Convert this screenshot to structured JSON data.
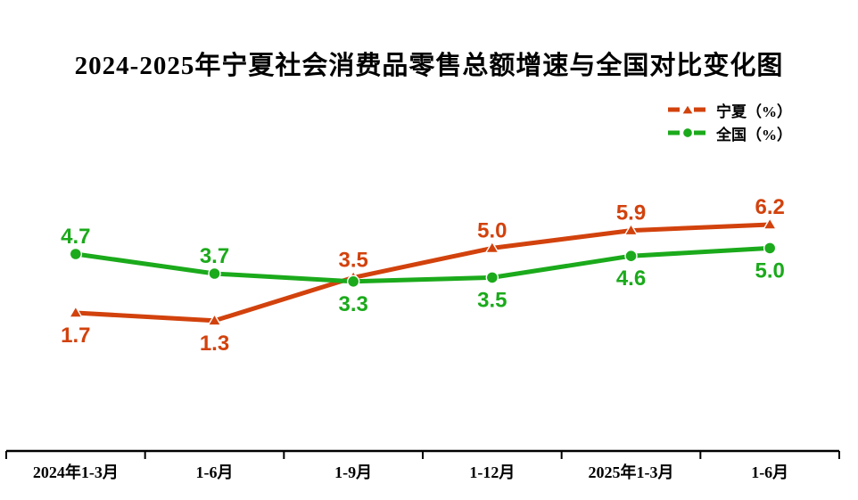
{
  "chart_data": {
    "type": "line",
    "title": "2024-2025年宁夏社会消费品零售总额增速与全国对比变化图",
    "categories": [
      "2024年1-3月",
      "1-6月",
      "1-9月",
      "1-12月",
      "2025年1-3月",
      "1-6月"
    ],
    "series": [
      {
        "name": "宁夏（%）",
        "color": "#D2420D",
        "marker": "triangle",
        "values": [
          1.7,
          1.3,
          3.5,
          5.0,
          5.9,
          6.2
        ],
        "label_position": [
          "below",
          "below",
          "above",
          "above",
          "above",
          "above"
        ]
      },
      {
        "name": "全国（%）",
        "color": "#1BAA1B",
        "marker": "circle",
        "values": [
          4.7,
          3.7,
          3.3,
          3.5,
          4.6,
          5.0
        ],
        "label_position": [
          "above",
          "above",
          "below",
          "below",
          "below",
          "below"
        ]
      }
    ],
    "legend_position": "top-right",
    "grid": false,
    "y_axis_visible": false,
    "x_axis_line": true,
    "axis_color": "#000000",
    "background_color": "#ffffff"
  }
}
